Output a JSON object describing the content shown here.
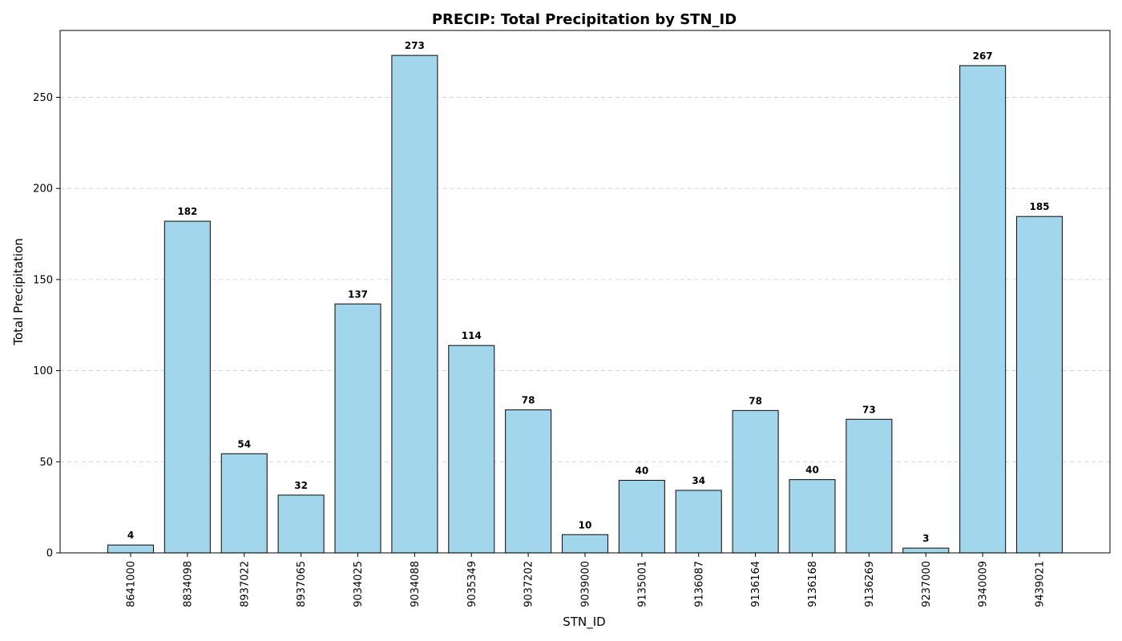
{
  "chart_data": {
    "type": "bar",
    "title": "PRECIP: Total Precipitation by STN_ID",
    "xlabel": "STN_ID",
    "ylabel": "Total Precipitation",
    "categories": [
      "8641000",
      "8834098",
      "8937022",
      "8937065",
      "9034025",
      "9034088",
      "9035349",
      "9037202",
      "9039000",
      "9135001",
      "9136087",
      "9136164",
      "9136168",
      "9136269",
      "9237000",
      "9340009",
      "9439021"
    ],
    "values": [
      4.3,
      182,
      54.4,
      31.7,
      136.6,
      273,
      113.8,
      78.5,
      10,
      39.8,
      34.3,
      78.1,
      40.2,
      73.3,
      2.6,
      267.4,
      184.6
    ],
    "data_labels": [
      "4",
      "182",
      "54",
      "32",
      "137",
      "273",
      "114",
      "78",
      "10",
      "40",
      "34",
      "78",
      "40",
      "73",
      "3",
      "267",
      "185"
    ],
    "y_ticks": [
      0,
      50,
      100,
      150,
      200,
      250
    ],
    "y_tick_labels": [
      "0",
      "50",
      "100",
      "150",
      "200",
      "250"
    ],
    "ylim": [
      0,
      286.7
    ],
    "grid": "y-dashed",
    "legend": "none",
    "bar_color": "#a1d6ec",
    "edge_color": "#1a1a1a"
  }
}
